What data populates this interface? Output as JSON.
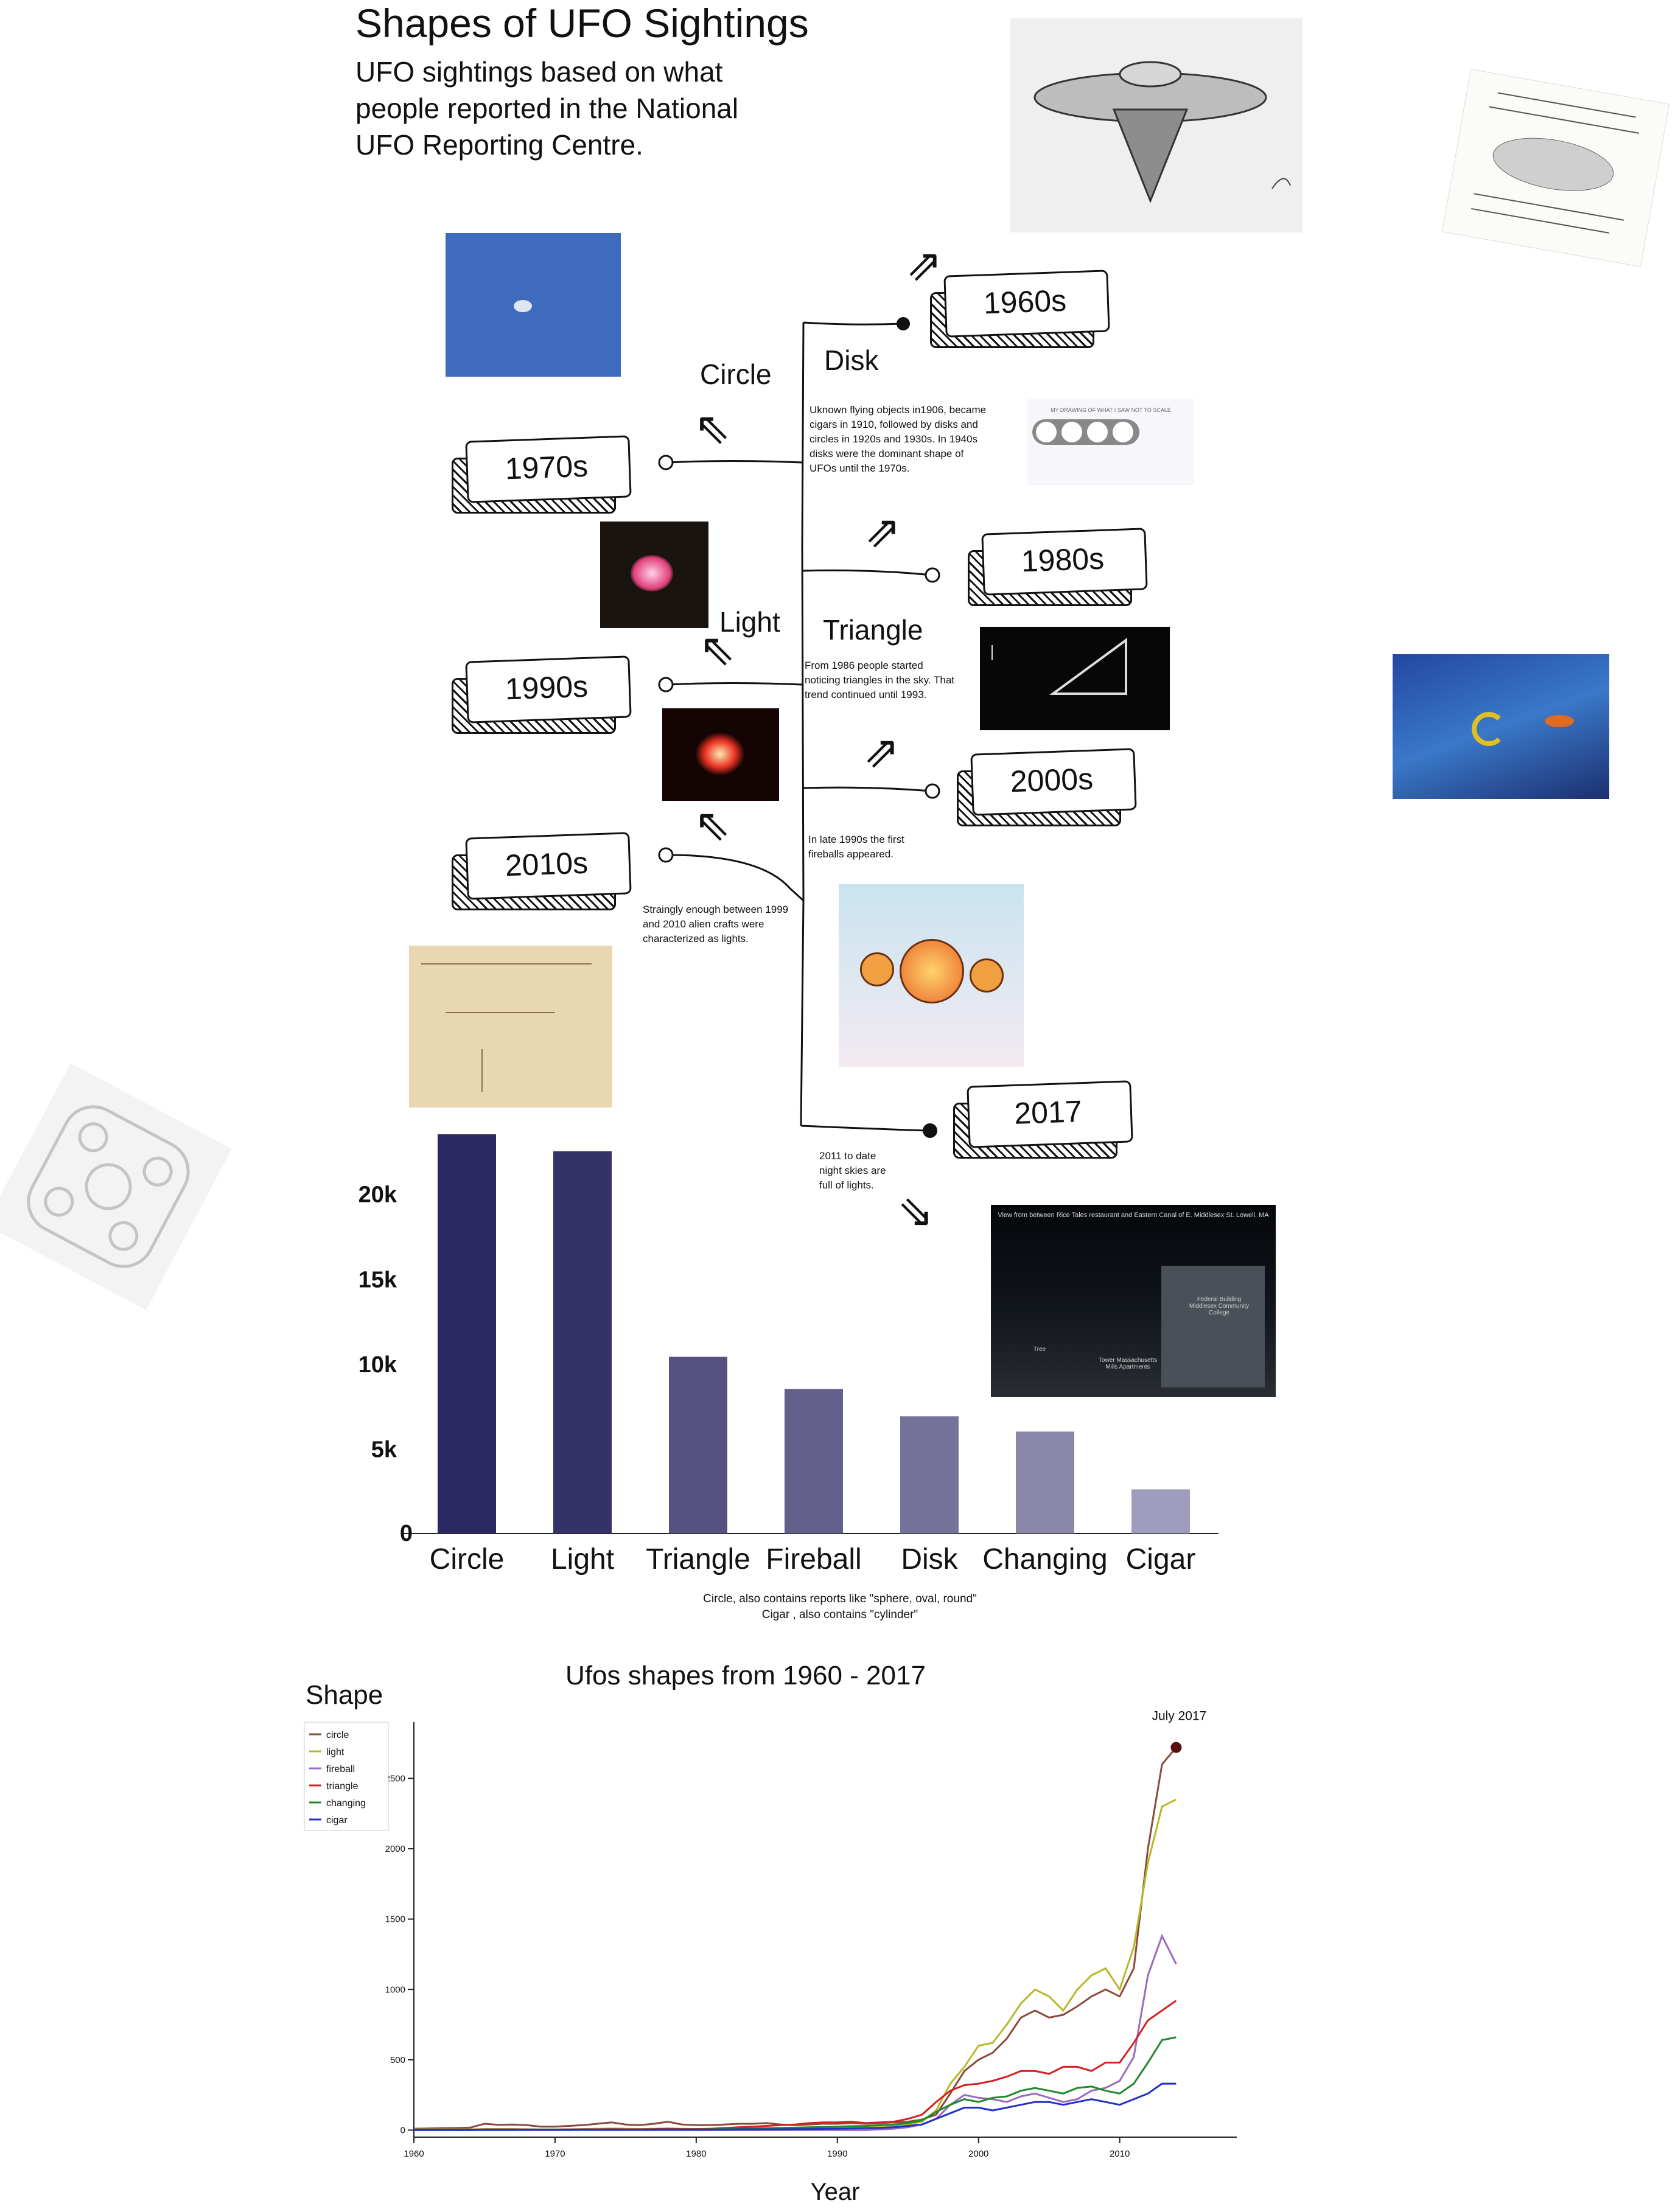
{
  "header": {
    "title": "Shapes of UFO Sightings",
    "subtitle": "UFO sightings based on what people reported in the National UFO Reporting Centre."
  },
  "timeline": {
    "decades": [
      "1960s",
      "1970s",
      "1980s",
      "1990s",
      "2000s",
      "2010s",
      "2017"
    ],
    "shapes": {
      "circle": "Circle",
      "disk": "Disk",
      "light": "Light",
      "triangle": "Triangle"
    },
    "notes": {
      "disk": "Uknown flying objects in1906, became cigars in 1910, followed by disks and circles  in 1920s and 1930s. In 1940s disks were the dominant shape of UFOs until the 1970s.",
      "triangle": "From  1986 people started noticing triangles in the sky. That trend continued until 1993.",
      "fireball": "In late 1990s the first fireballs appeared.",
      "light": "Straingly enough between 1999 and 2010 alien crafts were characterized as lights.",
      "lights2017": "2011 to date night skies are full of lights."
    }
  },
  "image_texts": {
    "diagram_header": "MY DRAWING OF WHAT I SAW NOT TO SCALE",
    "photo_caption": "View from between Rice Tales restaurant and Eastern Canal of E. Middlesex St. Lowell, MA",
    "building_label": "Federal Building Middlesex Community College",
    "tower_label": "Tower Massachusetts Mills Apartments",
    "tree_label": "Tree"
  },
  "colors": {
    "bar_dark": "#2a2660",
    "bar_light": "#9a98bb"
  },
  "chart_data": [
    {
      "type": "bar",
      "categories": [
        "Circle",
        "Light",
        "Triangle",
        "Fireball",
        "Disk",
        "Changing",
        "Cigar"
      ],
      "values": [
        23500,
        22500,
        10400,
        8500,
        6900,
        6000,
        2600
      ],
      "yticks": [
        "0",
        "5k",
        "10k",
        "15k",
        "20k"
      ],
      "ylim": [
        0,
        24000
      ],
      "colors": [
        "#2b2862",
        "#35326a",
        "#56527f",
        "#625f8a",
        "#75729a",
        "#8a87a9",
        "#9f9dbd"
      ],
      "footnotes": [
        "Circle, also contains reports like \"sphere, oval, round\"",
        "Cigar , also contains \"cylinder\""
      ]
    },
    {
      "type": "line",
      "title": "Ufos shapes from 1960 - 2017",
      "xlabel": "Year",
      "ylabel": "Shape",
      "xlim": [
        1960,
        2017
      ],
      "ylim": [
        -50,
        2900
      ],
      "xticks": [
        1960,
        1970,
        1980,
        1990,
        2000,
        2010
      ],
      "yticks": [
        0,
        500,
        1000,
        1500,
        2000,
        2500
      ],
      "legend_position": "top-left",
      "annotation": {
        "text": "July 2017",
        "x": 2014,
        "y": 2720
      },
      "x": [
        1960,
        1961,
        1962,
        1963,
        1964,
        1965,
        1966,
        1967,
        1968,
        1969,
        1970,
        1971,
        1972,
        1973,
        1974,
        1975,
        1976,
        1977,
        1978,
        1979,
        1980,
        1981,
        1982,
        1983,
        1984,
        1985,
        1986,
        1987,
        1988,
        1989,
        1990,
        1991,
        1992,
        1993,
        1994,
        1995,
        1996,
        1997,
        1998,
        1999,
        2000,
        2001,
        2002,
        2003,
        2004,
        2005,
        2006,
        2007,
        2008,
        2009,
        2010,
        2011,
        2012,
        2013,
        2014
      ],
      "series": [
        {
          "name": "circle",
          "color": "#8b4a3a",
          "values": [
            10,
            12,
            14,
            15,
            18,
            45,
            38,
            40,
            35,
            25,
            25,
            30,
            35,
            45,
            55,
            40,
            35,
            45,
            60,
            40,
            35,
            35,
            40,
            45,
            45,
            50,
            40,
            35,
            40,
            45,
            45,
            50,
            45,
            50,
            55,
            60,
            75,
            110,
            260,
            420,
            500,
            550,
            650,
            800,
            850,
            800,
            820,
            880,
            950,
            1000,
            950,
            1150,
            2000,
            2600,
            2720
          ]
        },
        {
          "name": "light",
          "color": "#b6b82a",
          "values": [
            5,
            5,
            5,
            5,
            5,
            8,
            8,
            8,
            6,
            5,
            5,
            6,
            8,
            10,
            12,
            10,
            8,
            10,
            12,
            10,
            8,
            8,
            10,
            12,
            10,
            12,
            10,
            10,
            12,
            14,
            15,
            18,
            20,
            25,
            30,
            40,
            60,
            140,
            330,
            450,
            600,
            620,
            750,
            900,
            1000,
            950,
            850,
            1000,
            1100,
            1150,
            1000,
            1300,
            1900,
            2300,
            2350
          ]
        },
        {
          "name": "fireball",
          "color": "#9a6ac0",
          "values": [
            0,
            0,
            0,
            0,
            0,
            0,
            0,
            0,
            0,
            0,
            0,
            0,
            0,
            0,
            0,
            0,
            0,
            0,
            0,
            0,
            0,
            0,
            0,
            0,
            0,
            0,
            0,
            0,
            0,
            0,
            0,
            0,
            0,
            5,
            10,
            20,
            40,
            80,
            180,
            250,
            230,
            220,
            200,
            240,
            260,
            230,
            200,
            220,
            280,
            300,
            350,
            520,
            1100,
            1380,
            1180
          ]
        },
        {
          "name": "triangle",
          "color": "#d42020",
          "values": [
            2,
            2,
            2,
            3,
            3,
            5,
            5,
            5,
            5,
            4,
            4,
            5,
            6,
            6,
            8,
            6,
            6,
            8,
            10,
            8,
            8,
            10,
            15,
            20,
            25,
            30,
            35,
            40,
            50,
            55,
            55,
            60,
            50,
            55,
            60,
            80,
            110,
            200,
            280,
            320,
            330,
            350,
            380,
            420,
            420,
            400,
            450,
            450,
            420,
            480,
            480,
            620,
            780,
            850,
            920
          ]
        },
        {
          "name": "changing",
          "color": "#1f8a2a",
          "values": [
            2,
            2,
            2,
            2,
            2,
            3,
            3,
            3,
            3,
            3,
            3,
            3,
            4,
            4,
            5,
            4,
            4,
            5,
            6,
            5,
            5,
            6,
            8,
            10,
            12,
            14,
            16,
            18,
            20,
            22,
            25,
            28,
            30,
            35,
            40,
            50,
            70,
            130,
            180,
            220,
            200,
            230,
            240,
            280,
            300,
            280,
            260,
            300,
            310,
            280,
            260,
            330,
            480,
            640,
            660
          ]
        },
        {
          "name": "cigar",
          "color": "#2030c8",
          "values": [
            1,
            1,
            1,
            1,
            1,
            2,
            2,
            2,
            2,
            2,
            2,
            2,
            3,
            3,
            3,
            3,
            3,
            3,
            4,
            3,
            3,
            3,
            4,
            5,
            5,
            6,
            6,
            7,
            8,
            9,
            10,
            12,
            14,
            16,
            20,
            30,
            40,
            80,
            120,
            160,
            160,
            140,
            160,
            180,
            200,
            200,
            180,
            200,
            220,
            200,
            180,
            220,
            260,
            330,
            330
          ]
        }
      ]
    }
  ]
}
